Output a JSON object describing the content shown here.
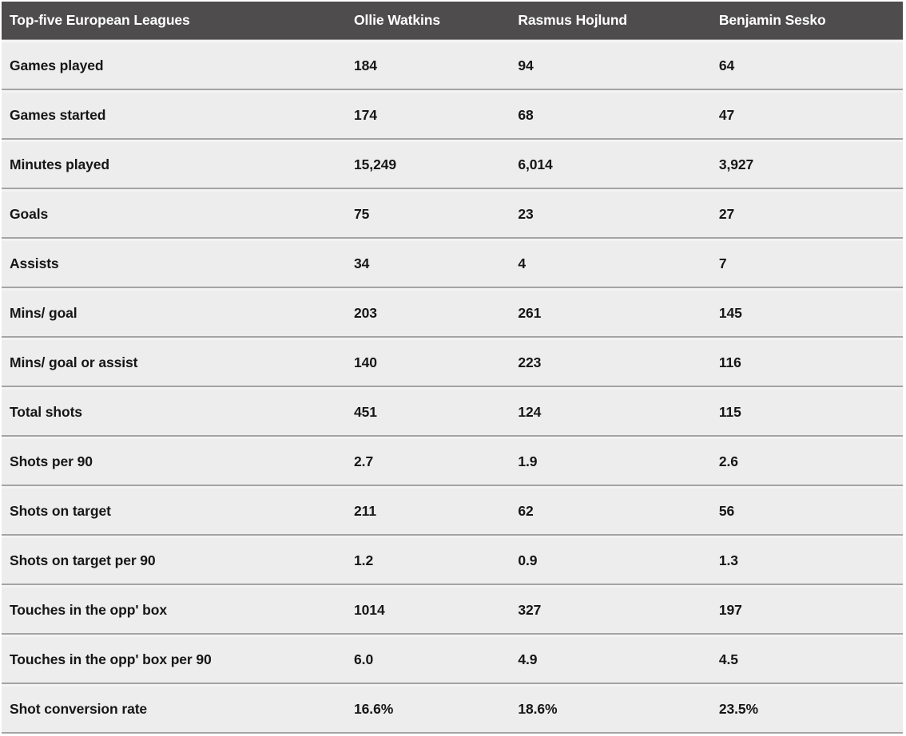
{
  "chart_data": {
    "type": "table",
    "title": "Top-five European Leagues",
    "header": {
      "row_label_column": "Top-five European Leagues",
      "player_columns": [
        "Ollie Watkins",
        "Rasmus Hojlund",
        "Benjamin Sesko"
      ]
    },
    "rows": [
      {
        "label": "Games played",
        "values": [
          "184",
          "94",
          "64"
        ]
      },
      {
        "label": "Games started",
        "values": [
          "174",
          "68",
          "47"
        ]
      },
      {
        "label": "Minutes played",
        "values": [
          "15,249",
          "6,014",
          "3,927"
        ]
      },
      {
        "label": "Goals",
        "values": [
          "75",
          "23",
          "27"
        ]
      },
      {
        "label": "Assists",
        "values": [
          "34",
          "4",
          "7"
        ]
      },
      {
        "label": "Mins/ goal",
        "values": [
          "203",
          "261",
          "145"
        ]
      },
      {
        "label": "Mins/ goal or assist",
        "values": [
          "140",
          "223",
          "116"
        ]
      },
      {
        "label": "Total shots",
        "values": [
          "451",
          "124",
          "115"
        ]
      },
      {
        "label": "Shots per 90",
        "values": [
          "2.7",
          "1.9",
          "2.6"
        ]
      },
      {
        "label": "Shots on target",
        "values": [
          "211",
          "62",
          "56"
        ]
      },
      {
        "label": "Shots on target per 90",
        "values": [
          "1.2",
          "0.9",
          "1.3"
        ]
      },
      {
        "label": "Touches in the opp' box",
        "values": [
          "1014",
          "327",
          "197"
        ]
      },
      {
        "label": "Touches in the opp' box per 90",
        "values": [
          "6.0",
          "4.9",
          "4.5"
        ]
      },
      {
        "label": "Shot conversion rate",
        "values": [
          "16.6%",
          "18.6%",
          "23.5%"
        ]
      }
    ],
    "layout": {
      "grid": "off",
      "legend": "none",
      "column_alignment": "left"
    }
  },
  "colors": {
    "header_bg": "#4e4c4d",
    "header_text": "#ffffff",
    "row_bg": "#eeedee",
    "row_text": "#161616",
    "separator": "#a5a3a4",
    "gap_bg": "#f4f3f4"
  }
}
